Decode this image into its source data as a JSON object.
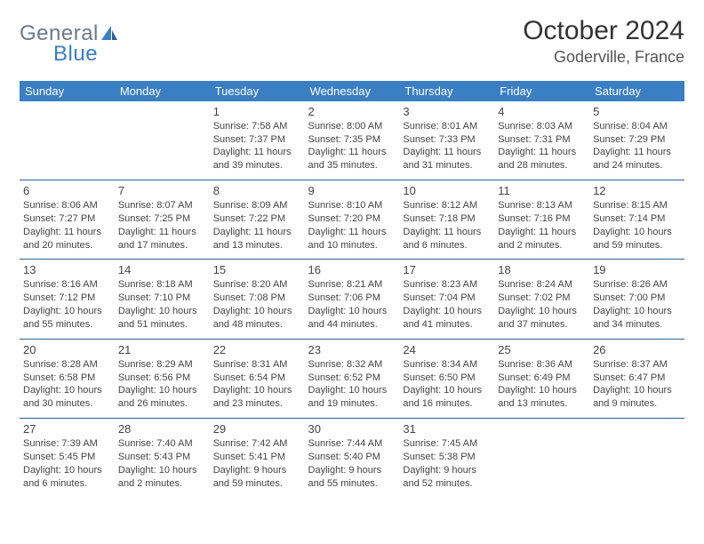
{
  "brand": {
    "part1": "General",
    "part2": "Blue"
  },
  "title": "October 2024",
  "location": "Goderville, France",
  "colors": {
    "header_bg": "#3a7fc4",
    "row_border": "#2f5f91",
    "text": "#333333",
    "brand_grey": "#6b7a89",
    "brand_blue": "#3a7fc4"
  },
  "weekdays": [
    "Sunday",
    "Monday",
    "Tuesday",
    "Wednesday",
    "Thursday",
    "Friday",
    "Saturday"
  ],
  "weeks": [
    [
      null,
      null,
      {
        "n": "1",
        "sr": "Sunrise: 7:58 AM",
        "ss": "Sunset: 7:37 PM",
        "d1": "Daylight: 11 hours",
        "d2": "and 39 minutes."
      },
      {
        "n": "2",
        "sr": "Sunrise: 8:00 AM",
        "ss": "Sunset: 7:35 PM",
        "d1": "Daylight: 11 hours",
        "d2": "and 35 minutes."
      },
      {
        "n": "3",
        "sr": "Sunrise: 8:01 AM",
        "ss": "Sunset: 7:33 PM",
        "d1": "Daylight: 11 hours",
        "d2": "and 31 minutes."
      },
      {
        "n": "4",
        "sr": "Sunrise: 8:03 AM",
        "ss": "Sunset: 7:31 PM",
        "d1": "Daylight: 11 hours",
        "d2": "and 28 minutes."
      },
      {
        "n": "5",
        "sr": "Sunrise: 8:04 AM",
        "ss": "Sunset: 7:29 PM",
        "d1": "Daylight: 11 hours",
        "d2": "and 24 minutes."
      }
    ],
    [
      {
        "n": "6",
        "sr": "Sunrise: 8:06 AM",
        "ss": "Sunset: 7:27 PM",
        "d1": "Daylight: 11 hours",
        "d2": "and 20 minutes."
      },
      {
        "n": "7",
        "sr": "Sunrise: 8:07 AM",
        "ss": "Sunset: 7:25 PM",
        "d1": "Daylight: 11 hours",
        "d2": "and 17 minutes."
      },
      {
        "n": "8",
        "sr": "Sunrise: 8:09 AM",
        "ss": "Sunset: 7:22 PM",
        "d1": "Daylight: 11 hours",
        "d2": "and 13 minutes."
      },
      {
        "n": "9",
        "sr": "Sunrise: 8:10 AM",
        "ss": "Sunset: 7:20 PM",
        "d1": "Daylight: 11 hours",
        "d2": "and 10 minutes."
      },
      {
        "n": "10",
        "sr": "Sunrise: 8:12 AM",
        "ss": "Sunset: 7:18 PM",
        "d1": "Daylight: 11 hours",
        "d2": "and 6 minutes."
      },
      {
        "n": "11",
        "sr": "Sunrise: 8:13 AM",
        "ss": "Sunset: 7:16 PM",
        "d1": "Daylight: 11 hours",
        "d2": "and 2 minutes."
      },
      {
        "n": "12",
        "sr": "Sunrise: 8:15 AM",
        "ss": "Sunset: 7:14 PM",
        "d1": "Daylight: 10 hours",
        "d2": "and 59 minutes."
      }
    ],
    [
      {
        "n": "13",
        "sr": "Sunrise: 8:16 AM",
        "ss": "Sunset: 7:12 PM",
        "d1": "Daylight: 10 hours",
        "d2": "and 55 minutes."
      },
      {
        "n": "14",
        "sr": "Sunrise: 8:18 AM",
        "ss": "Sunset: 7:10 PM",
        "d1": "Daylight: 10 hours",
        "d2": "and 51 minutes."
      },
      {
        "n": "15",
        "sr": "Sunrise: 8:20 AM",
        "ss": "Sunset: 7:08 PM",
        "d1": "Daylight: 10 hours",
        "d2": "and 48 minutes."
      },
      {
        "n": "16",
        "sr": "Sunrise: 8:21 AM",
        "ss": "Sunset: 7:06 PM",
        "d1": "Daylight: 10 hours",
        "d2": "and 44 minutes."
      },
      {
        "n": "17",
        "sr": "Sunrise: 8:23 AM",
        "ss": "Sunset: 7:04 PM",
        "d1": "Daylight: 10 hours",
        "d2": "and 41 minutes."
      },
      {
        "n": "18",
        "sr": "Sunrise: 8:24 AM",
        "ss": "Sunset: 7:02 PM",
        "d1": "Daylight: 10 hours",
        "d2": "and 37 minutes."
      },
      {
        "n": "19",
        "sr": "Sunrise: 8:26 AM",
        "ss": "Sunset: 7:00 PM",
        "d1": "Daylight: 10 hours",
        "d2": "and 34 minutes."
      }
    ],
    [
      {
        "n": "20",
        "sr": "Sunrise: 8:28 AM",
        "ss": "Sunset: 6:58 PM",
        "d1": "Daylight: 10 hours",
        "d2": "and 30 minutes."
      },
      {
        "n": "21",
        "sr": "Sunrise: 8:29 AM",
        "ss": "Sunset: 6:56 PM",
        "d1": "Daylight: 10 hours",
        "d2": "and 26 minutes."
      },
      {
        "n": "22",
        "sr": "Sunrise: 8:31 AM",
        "ss": "Sunset: 6:54 PM",
        "d1": "Daylight: 10 hours",
        "d2": "and 23 minutes."
      },
      {
        "n": "23",
        "sr": "Sunrise: 8:32 AM",
        "ss": "Sunset: 6:52 PM",
        "d1": "Daylight: 10 hours",
        "d2": "and 19 minutes."
      },
      {
        "n": "24",
        "sr": "Sunrise: 8:34 AM",
        "ss": "Sunset: 6:50 PM",
        "d1": "Daylight: 10 hours",
        "d2": "and 16 minutes."
      },
      {
        "n": "25",
        "sr": "Sunrise: 8:36 AM",
        "ss": "Sunset: 6:49 PM",
        "d1": "Daylight: 10 hours",
        "d2": "and 13 minutes."
      },
      {
        "n": "26",
        "sr": "Sunrise: 8:37 AM",
        "ss": "Sunset: 6:47 PM",
        "d1": "Daylight: 10 hours",
        "d2": "and 9 minutes."
      }
    ],
    [
      {
        "n": "27",
        "sr": "Sunrise: 7:39 AM",
        "ss": "Sunset: 5:45 PM",
        "d1": "Daylight: 10 hours",
        "d2": "and 6 minutes."
      },
      {
        "n": "28",
        "sr": "Sunrise: 7:40 AM",
        "ss": "Sunset: 5:43 PM",
        "d1": "Daylight: 10 hours",
        "d2": "and 2 minutes."
      },
      {
        "n": "29",
        "sr": "Sunrise: 7:42 AM",
        "ss": "Sunset: 5:41 PM",
        "d1": "Daylight: 9 hours",
        "d2": "and 59 minutes."
      },
      {
        "n": "30",
        "sr": "Sunrise: 7:44 AM",
        "ss": "Sunset: 5:40 PM",
        "d1": "Daylight: 9 hours",
        "d2": "and 55 minutes."
      },
      {
        "n": "31",
        "sr": "Sunrise: 7:45 AM",
        "ss": "Sunset: 5:38 PM",
        "d1": "Daylight: 9 hours",
        "d2": "and 52 minutes."
      },
      null,
      null
    ]
  ]
}
